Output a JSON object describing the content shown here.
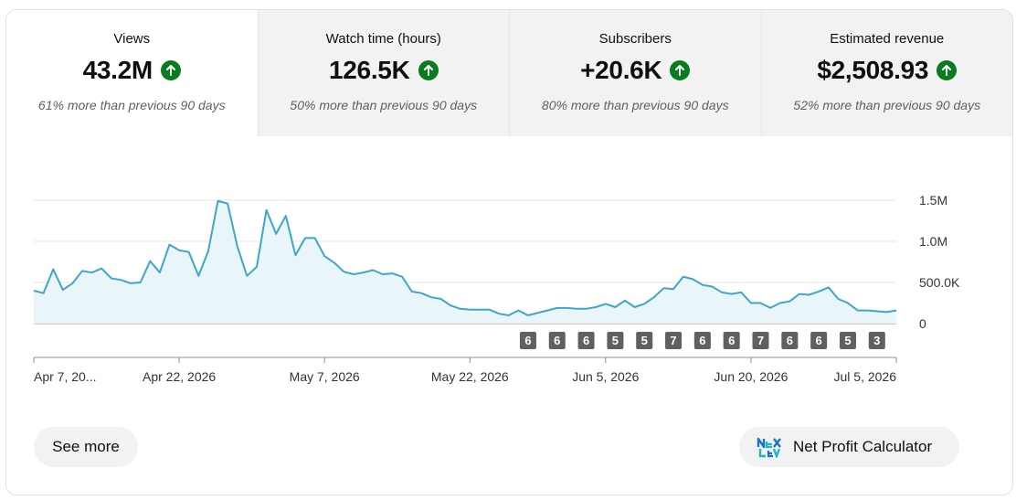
{
  "tabs": [
    {
      "label": "Views",
      "value": "43.2M",
      "compare": "61% more than previous 90 days",
      "active": true
    },
    {
      "label": "Watch time (hours)",
      "value": "126.5K",
      "compare": "50% more than previous 90 days",
      "active": false
    },
    {
      "label": "Subscribers",
      "value": "+20.6K",
      "compare": "80% more than previous 90 days",
      "active": false
    },
    {
      "label": "Estimated revenue",
      "value": "$2,508.93",
      "compare": "52% more than previous 90 days",
      "active": false
    }
  ],
  "chart_data": {
    "type": "area",
    "title": "",
    "xlabel": "",
    "ylabel": "",
    "ylim": [
      0,
      1500000
    ],
    "y_ticks": [
      {
        "value": 1500000,
        "label": "1.5M"
      },
      {
        "value": 1000000,
        "label": "1.0M"
      },
      {
        "value": 500000,
        "label": "500.0K"
      },
      {
        "value": 0,
        "label": "0"
      }
    ],
    "x_ticks": [
      {
        "index": 0,
        "label": "Apr 7, 20..."
      },
      {
        "index": 15,
        "label": "Apr 22, 2026"
      },
      {
        "index": 30,
        "label": "May 7, 2026"
      },
      {
        "index": 45,
        "label": "May 22, 2026"
      },
      {
        "index": 59,
        "label": "Jun 5, 2026"
      },
      {
        "index": 74,
        "label": "Jun 20, 2026"
      },
      {
        "index": 89,
        "label": "Jul 5, 2026"
      }
    ],
    "grid": true,
    "line_color": "#3ea6c8",
    "fill_color": "#eaf5fa",
    "series": [
      {
        "values": [
          400000,
          370000,
          660000,
          410000,
          490000,
          640000,
          620000,
          670000,
          550000,
          530000,
          490000,
          500000,
          760000,
          620000,
          960000,
          890000,
          870000,
          580000,
          880000,
          1490000,
          1460000,
          940000,
          580000,
          690000,
          1380000,
          1090000,
          1310000,
          830000,
          1040000,
          1040000,
          820000,
          740000,
          630000,
          600000,
          620000,
          650000,
          600000,
          610000,
          570000,
          390000,
          370000,
          320000,
          300000,
          220000,
          180000,
          170000,
          170000,
          170000,
          120000,
          100000,
          160000,
          100000,
          130000,
          160000,
          190000,
          190000,
          180000,
          180000,
          200000,
          240000,
          200000,
          280000,
          200000,
          240000,
          320000,
          430000,
          420000,
          570000,
          540000,
          470000,
          450000,
          380000,
          360000,
          380000,
          250000,
          250000,
          190000,
          250000,
          270000,
          360000,
          350000,
          390000,
          440000,
          300000,
          250000,
          160000,
          160000,
          150000,
          140000,
          160000
        ]
      }
    ],
    "annotations": [
      {
        "index": 51,
        "label": "6"
      },
      {
        "index": 54,
        "label": "6"
      },
      {
        "index": 57,
        "label": "6"
      },
      {
        "index": 60,
        "label": "5"
      },
      {
        "index": 63,
        "label": "5"
      },
      {
        "index": 66,
        "label": "7"
      },
      {
        "index": 69,
        "label": "6"
      },
      {
        "index": 72,
        "label": "6"
      },
      {
        "index": 75,
        "label": "7"
      },
      {
        "index": 78,
        "label": "6"
      },
      {
        "index": 81,
        "label": "6"
      },
      {
        "index": 84,
        "label": "5"
      },
      {
        "index": 87,
        "label": "3"
      }
    ]
  },
  "buttons": {
    "see_more": "See more",
    "calculator": "Net Profit Calculator"
  },
  "icons": {
    "trend": "arrow-up-icon",
    "logo": "nexlev-logo-icon"
  },
  "colors": {
    "accent_green": "#0a7b1f",
    "line": "#3ea6c8",
    "annotation_bg": "#606060"
  }
}
